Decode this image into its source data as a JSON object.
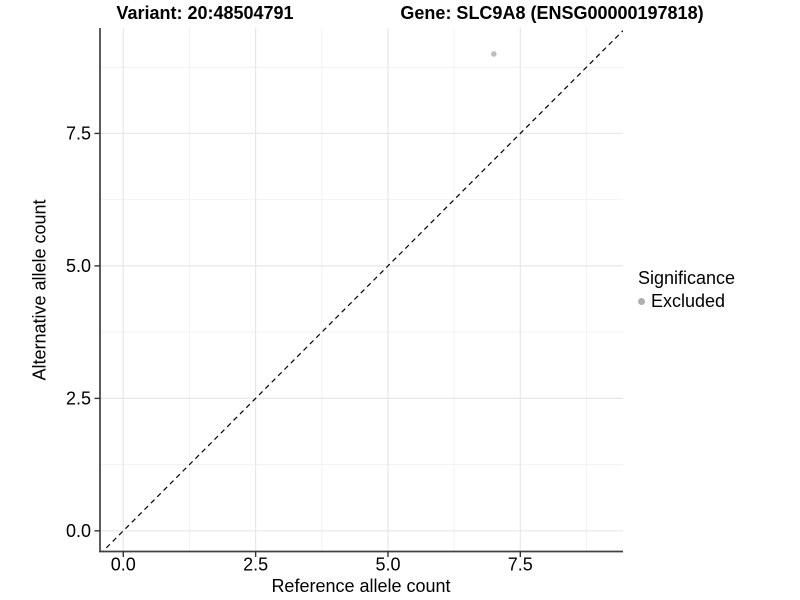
{
  "chart_data": {
    "type": "scatter",
    "title_variant": "Variant: 20:48504791",
    "title_gene": "Gene: SLC9A8 (ENSG00000197818)",
    "xlabel": "Reference allele count",
    "ylabel": "Alternative allele count",
    "x_ticks": [
      "0.0",
      "2.5",
      "5.0",
      "7.5"
    ],
    "y_ticks": [
      "0.0",
      "2.5",
      "5.0",
      "7.5"
    ],
    "xlim": [
      -0.44,
      9.44
    ],
    "ylim": [
      -0.39,
      9.49
    ],
    "grid": true,
    "coord_equal": true,
    "points": [
      {
        "x": 7,
        "y": 9,
        "significance": "Excluded",
        "color": "#bdbdbd"
      }
    ],
    "identity_line": {
      "slope": 1,
      "intercept": 0,
      "style": "dashed",
      "color": "#000000"
    },
    "legend": {
      "position": "right",
      "title": "Significance",
      "entries": [
        {
          "label": "Excluded",
          "color": "#b0b0b0"
        }
      ]
    }
  },
  "colors": {
    "background": "#ffffff",
    "axis_line": "#404040",
    "tick_mark": "#333333",
    "grid_major": "#e7e7e7",
    "grid_minor": "#f2f2f2",
    "text": "#000000"
  }
}
